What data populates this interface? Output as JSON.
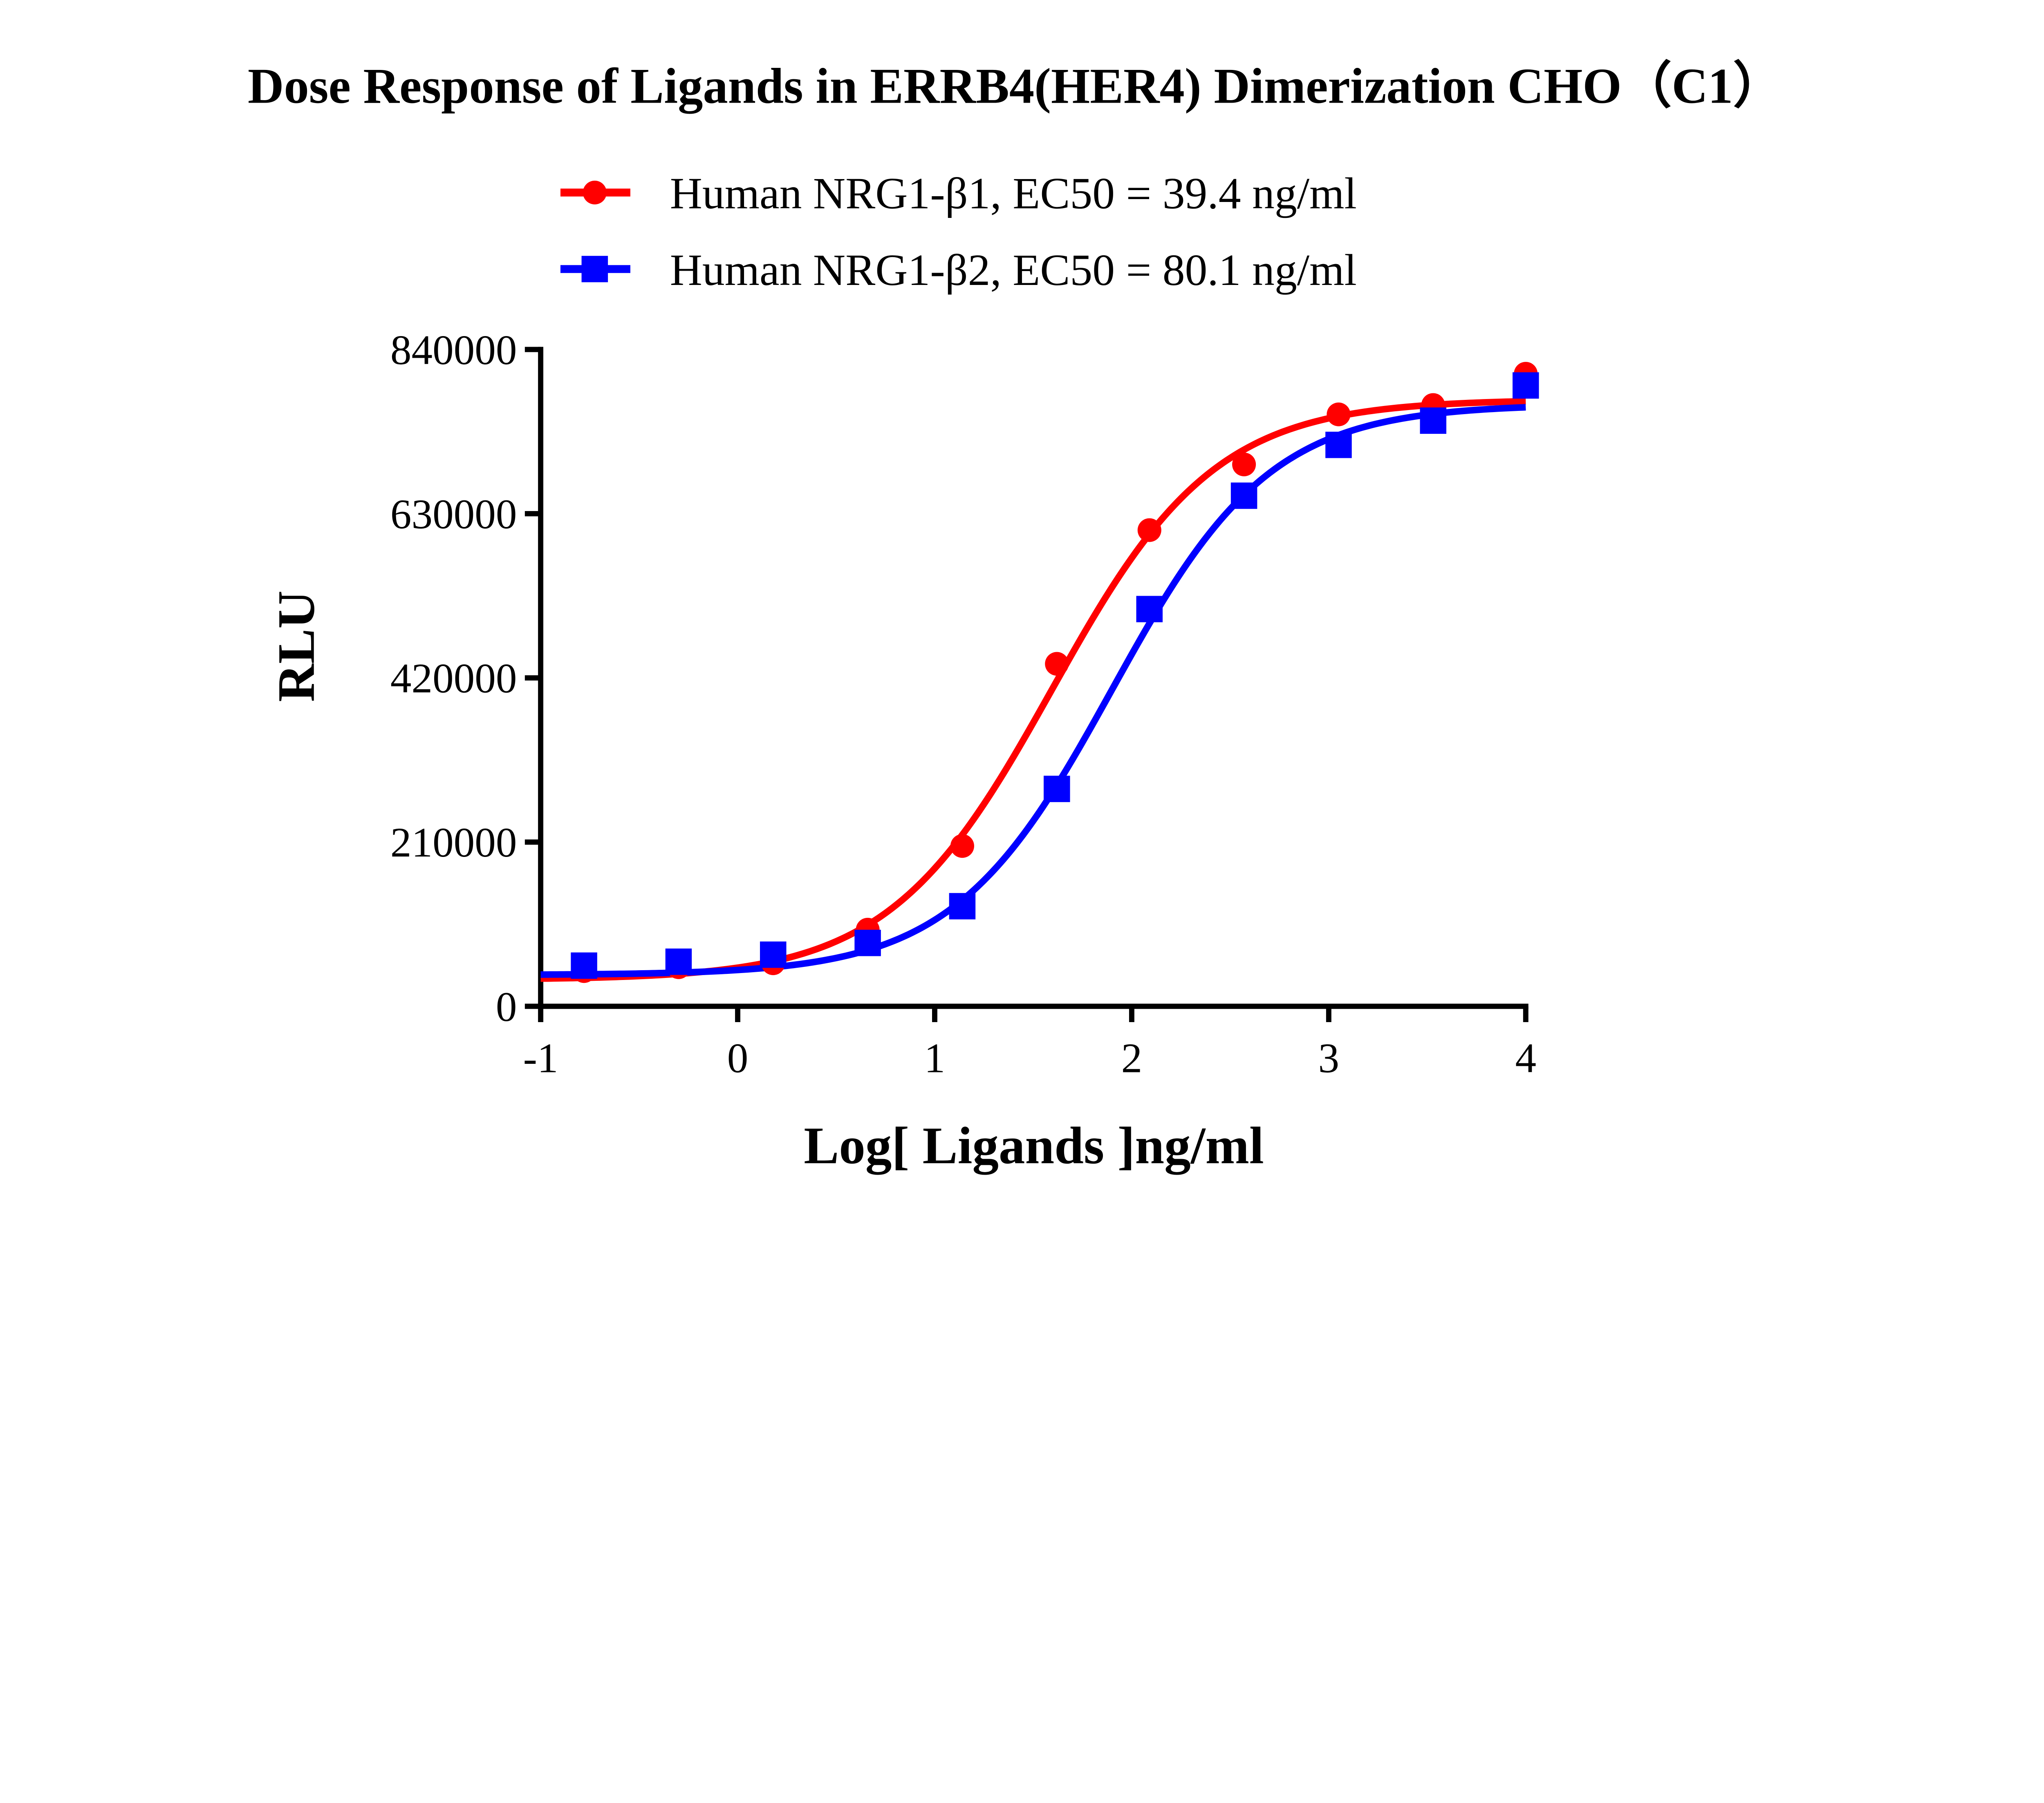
{
  "chart_data": {
    "type": "scatter",
    "title": "Dose Response of Ligands in ERRB4(HER4) Dimerization CHO（C1）",
    "xlabel": "Log[ Ligands ]ng/ml",
    "ylabel": "RLU",
    "xlim": [
      -1,
      4
    ],
    "ylim": [
      0,
      840000
    ],
    "x_ticks": [
      "-1",
      "0",
      "1",
      "2",
      "3",
      "4"
    ],
    "y_ticks": [
      "0",
      "210000",
      "420000",
      "630000",
      "840000"
    ],
    "legend_position": "top",
    "grid": false,
    "series": [
      {
        "name": "Human NRG1-β1, EC50 = 39.4 ng/ml",
        "color": "#ff0000",
        "marker": "circle",
        "x": [
          -0.78,
          -0.3,
          0.18,
          0.66,
          1.14,
          1.62,
          2.09,
          2.57,
          3.05,
          3.53,
          4.0
        ],
        "y": [
          45000,
          50000,
          55000,
          98000,
          205000,
          438000,
          609000,
          693000,
          757000,
          769000,
          809000
        ],
        "fit": {
          "model": "4PL",
          "bottom": 34000,
          "top": 776000,
          "logEC50": 1.595,
          "hill": 1.05
        }
      },
      {
        "name": "Human NRG1-β2, EC50 = 80.1 ng/ml",
        "color": "#0000ff",
        "marker": "square",
        "x": [
          -0.78,
          -0.3,
          0.18,
          0.66,
          1.14,
          1.62,
          2.09,
          2.57,
          3.05,
          3.53,
          4.0
        ],
        "y": [
          52000,
          57000,
          66000,
          81000,
          128000,
          278000,
          508000,
          653000,
          718000,
          749000,
          794000
        ],
        "fit": {
          "model": "4PL",
          "bottom": 40000,
          "top": 770000,
          "logEC50": 1.9,
          "hill": 1.08
        }
      }
    ]
  }
}
